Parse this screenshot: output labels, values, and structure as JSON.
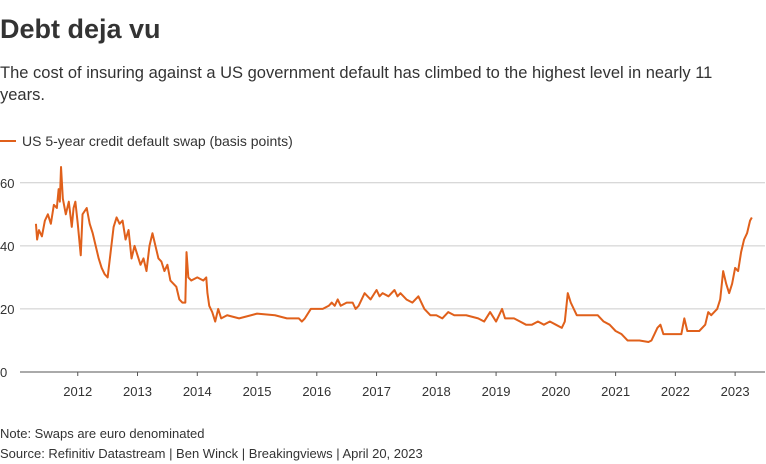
{
  "chart_data": {
    "type": "line",
    "title": "Debt deja vu",
    "subtitle": "The cost of insuring against a US government default has climbed to the highest level in nearly 11 years.",
    "note": "Note: Swaps are euro denominated",
    "source": "Source: Refinitiv Datastream | Ben Winck | Breakingviews | April 20, 2023",
    "x": [
      2011.3,
      2011.32,
      2011.35,
      2011.4,
      2011.45,
      2011.5,
      2011.55,
      2011.6,
      2011.65,
      2011.68,
      2011.7,
      2011.72,
      2011.75,
      2011.8,
      2011.85,
      2011.9,
      2011.93,
      2011.96,
      2012.0,
      2012.05,
      2012.08,
      2012.15,
      2012.2,
      2012.25,
      2012.3,
      2012.35,
      2012.4,
      2012.45,
      2012.5,
      2012.55,
      2012.6,
      2012.65,
      2012.7,
      2012.75,
      2012.8,
      2012.85,
      2012.9,
      2012.95,
      2013.0,
      2013.05,
      2013.1,
      2013.15,
      2013.2,
      2013.25,
      2013.3,
      2013.35,
      2013.4,
      2013.45,
      2013.5,
      2013.55,
      2013.6,
      2013.65,
      2013.7,
      2013.75,
      2013.8,
      2013.82,
      2013.85,
      2013.9,
      2014.0,
      2014.1,
      2014.15,
      2014.17,
      2014.2,
      2014.25,
      2014.3,
      2014.35,
      2014.4,
      2014.5,
      2014.7,
      2014.9,
      2015.0,
      2015.3,
      2015.5,
      2015.7,
      2015.75,
      2015.8,
      2015.9,
      2016.1,
      2016.2,
      2016.25,
      2016.3,
      2016.35,
      2016.4,
      2016.5,
      2016.6,
      2016.65,
      2016.7,
      2016.8,
      2016.85,
      2016.9,
      2017.0,
      2017.05,
      2017.1,
      2017.2,
      2017.3,
      2017.35,
      2017.4,
      2017.5,
      2017.6,
      2017.7,
      2017.8,
      2017.9,
      2018.0,
      2018.1,
      2018.2,
      2018.3,
      2018.5,
      2018.7,
      2018.8,
      2018.9,
      2019.0,
      2019.1,
      2019.15,
      2019.3,
      2019.4,
      2019.5,
      2019.6,
      2019.7,
      2019.8,
      2019.9,
      2020.0,
      2020.1,
      2020.15,
      2020.2,
      2020.25,
      2020.35,
      2020.5,
      2020.7,
      2020.8,
      2020.9,
      2021.0,
      2021.1,
      2021.2,
      2021.4,
      2021.55,
      2021.6,
      2021.65,
      2021.7,
      2021.75,
      2021.8,
      2022.0,
      2022.1,
      2022.15,
      2022.2,
      2022.4,
      2022.5,
      2022.55,
      2022.6,
      2022.7,
      2022.75,
      2022.8,
      2022.85,
      2022.9,
      2022.95,
      2023.0,
      2023.05,
      2023.1,
      2023.15,
      2023.2,
      2023.25,
      2023.28
    ],
    "series": [
      {
        "name": "US 5-year credit default swap (basis points)",
        "color": "#e0601b",
        "values": [
          47,
          42,
          45,
          43,
          48,
          50,
          47,
          53,
          52,
          58,
          54,
          65,
          55,
          50,
          54,
          46,
          52,
          54,
          47,
          37,
          50,
          52,
          47,
          44,
          40,
          36,
          33,
          31,
          30,
          38,
          46,
          49,
          47,
          48,
          42,
          45,
          36,
          40,
          37,
          34,
          36,
          32,
          40,
          44,
          40,
          36,
          35,
          32,
          34,
          29,
          28,
          27,
          23,
          22,
          22,
          38,
          30,
          29,
          30,
          29,
          30,
          25,
          21,
          19,
          16,
          20,
          17,
          18,
          17,
          18,
          18.5,
          18,
          17,
          17,
          16,
          17,
          20,
          20,
          21,
          22,
          21,
          23,
          21,
          22,
          22,
          20,
          21,
          25,
          24,
          23,
          26,
          24,
          25,
          24,
          26,
          24,
          25,
          23,
          22,
          24,
          20,
          18,
          18,
          17,
          19,
          18,
          18,
          17,
          16,
          19,
          16,
          20,
          17,
          17,
          16,
          15,
          15,
          16,
          15,
          16,
          15,
          14,
          16,
          25,
          22,
          18,
          18,
          18,
          16,
          15,
          13,
          12,
          10,
          10,
          9.5,
          10,
          12,
          14,
          15,
          12,
          12,
          12,
          17,
          13,
          13,
          15,
          19,
          18,
          20,
          23,
          32,
          28,
          25,
          28,
          33,
          32,
          38,
          42,
          44,
          48,
          49
        ]
      }
    ],
    "xlim": [
      2011.0,
      2023.5
    ],
    "ylim": [
      0,
      65
    ],
    "xticks": [
      2012,
      2013,
      2014,
      2015,
      2016,
      2017,
      2018,
      2019,
      2020,
      2021,
      2022,
      2023
    ],
    "yticks": [
      0,
      20,
      40,
      60
    ],
    "grid": true
  }
}
